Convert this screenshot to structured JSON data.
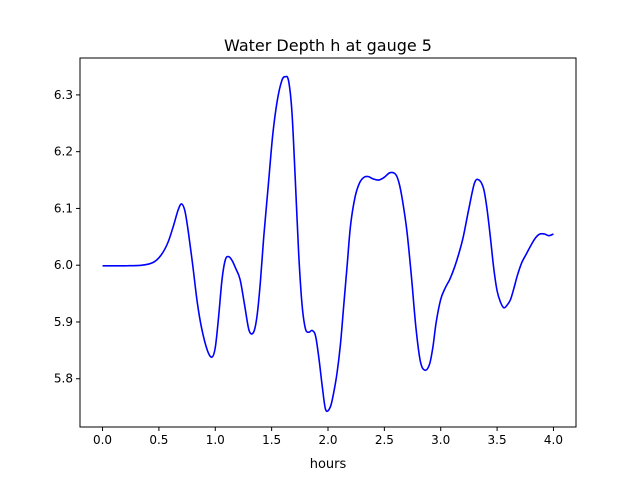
{
  "colors": {
    "line": "#0000ff",
    "axes": "#000000",
    "background": "#ffffff"
  },
  "chart_data": {
    "type": "line",
    "title": "Water Depth h at gauge 5",
    "xlabel": "hours",
    "ylabel": "",
    "xlim": [
      -0.2,
      4.2
    ],
    "ylim": [
      5.715,
      6.365
    ],
    "grid": false,
    "xticks": [
      0.0,
      0.5,
      1.0,
      1.5,
      2.0,
      2.5,
      3.0,
      3.5,
      4.0
    ],
    "xtick_labels": [
      "0.0",
      "0.5",
      "1.0",
      "1.5",
      "2.0",
      "2.5",
      "3.0",
      "3.5",
      "4.0"
    ],
    "yticks": [
      5.8,
      5.9,
      6.0,
      6.1,
      6.2,
      6.3
    ],
    "ytick_labels": [
      "5.8",
      "5.9",
      "6.0",
      "6.1",
      "6.2",
      "6.3"
    ],
    "series": [
      {
        "color": "#0000ff",
        "x": [
          0.0,
          0.2,
          0.35,
          0.45,
          0.52,
          0.58,
          0.63,
          0.67,
          0.7,
          0.73,
          0.76,
          0.8,
          0.84,
          0.88,
          0.93,
          0.97,
          1.0,
          1.03,
          1.06,
          1.09,
          1.12,
          1.15,
          1.18,
          1.22,
          1.26,
          1.3,
          1.34,
          1.37,
          1.4,
          1.43,
          1.47,
          1.51,
          1.55,
          1.59,
          1.62,
          1.65,
          1.68,
          1.71,
          1.74,
          1.77,
          1.8,
          1.83,
          1.86,
          1.89,
          1.92,
          1.95,
          1.98,
          2.02,
          2.05,
          2.08,
          2.11,
          2.14,
          2.17,
          2.2,
          2.24,
          2.28,
          2.32,
          2.36,
          2.4,
          2.45,
          2.5,
          2.55,
          2.6,
          2.63,
          2.66,
          2.7,
          2.74,
          2.78,
          2.82,
          2.86,
          2.9,
          2.93,
          2.96,
          3.0,
          3.04,
          3.08,
          3.12,
          3.16,
          3.2,
          3.25,
          3.3,
          3.34,
          3.38,
          3.41,
          3.44,
          3.47,
          3.5,
          3.53,
          3.56,
          3.59,
          3.62,
          3.65,
          3.68,
          3.72,
          3.76,
          3.8,
          3.84,
          3.88,
          3.92,
          3.96,
          4.0
        ],
        "y": [
          5.999,
          5.999,
          6.0,
          6.005,
          6.018,
          6.04,
          6.07,
          6.097,
          6.108,
          6.096,
          6.06,
          6.0,
          5.935,
          5.888,
          5.85,
          5.838,
          5.855,
          5.91,
          5.975,
          6.01,
          6.015,
          6.008,
          5.995,
          5.975,
          5.93,
          5.885,
          5.882,
          5.91,
          5.97,
          6.05,
          6.14,
          6.23,
          6.29,
          6.325,
          6.332,
          6.325,
          6.27,
          6.15,
          6.02,
          5.93,
          5.888,
          5.882,
          5.885,
          5.875,
          5.835,
          5.785,
          5.745,
          5.75,
          5.775,
          5.81,
          5.86,
          5.93,
          6.0,
          6.07,
          6.12,
          6.145,
          6.155,
          6.156,
          6.152,
          6.15,
          6.155,
          6.163,
          6.16,
          6.145,
          6.115,
          6.06,
          5.98,
          5.89,
          5.83,
          5.815,
          5.825,
          5.855,
          5.9,
          5.94,
          5.96,
          5.975,
          5.995,
          6.02,
          6.05,
          6.1,
          6.145,
          6.15,
          6.135,
          6.1,
          6.05,
          5.995,
          5.955,
          5.935,
          5.925,
          5.93,
          5.94,
          5.96,
          5.982,
          6.005,
          6.02,
          6.035,
          6.048,
          6.055,
          6.055,
          6.052,
          6.055
        ]
      }
    ]
  }
}
